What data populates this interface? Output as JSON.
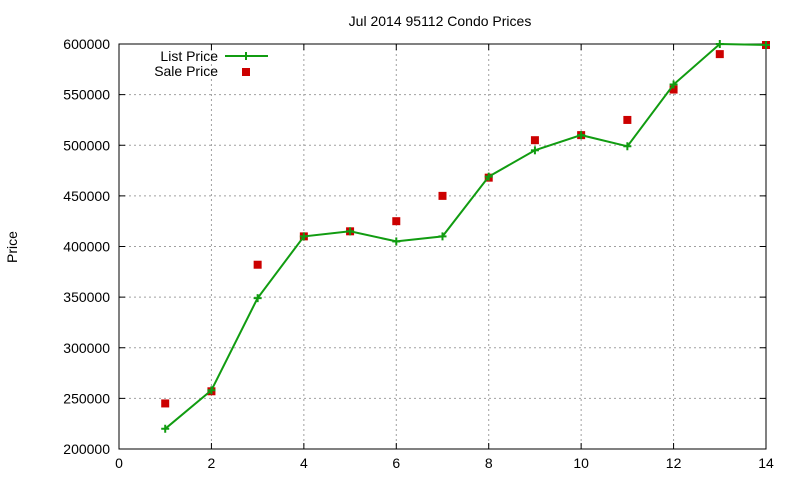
{
  "chart_data": {
    "type": "line",
    "title": "Jul 2014 95112 Condo Prices",
    "xlabel": "",
    "ylabel": "Price",
    "xlim": [
      0,
      14
    ],
    "ylim": [
      200000,
      600000
    ],
    "xticks": [
      0,
      2,
      4,
      6,
      8,
      10,
      12,
      14
    ],
    "yticks": [
      200000,
      250000,
      300000,
      350000,
      400000,
      450000,
      500000,
      550000,
      600000
    ],
    "grid": true,
    "legend_position": "top-left",
    "series": [
      {
        "name": "List Price",
        "style": "line with plus markers",
        "color": "#119c11",
        "x": [
          1,
          2,
          3,
          4,
          5,
          6,
          7,
          8,
          9,
          10,
          11,
          12,
          13,
          14
        ],
        "y": [
          220000,
          258000,
          349000,
          410000,
          415000,
          405000,
          410000,
          469000,
          495000,
          510000,
          499000,
          560000,
          600000,
          599000
        ]
      },
      {
        "name": "Sale Price",
        "style": "square markers",
        "color": "#cc0000",
        "x": [
          1,
          2,
          3,
          4,
          5,
          6,
          7,
          8,
          9,
          10,
          11,
          12,
          13,
          14
        ],
        "y": [
          245000,
          257000,
          382000,
          410000,
          415000,
          425000,
          450000,
          468000,
          505000,
          510000,
          525000,
          555000,
          590000,
          599000
        ]
      }
    ]
  }
}
